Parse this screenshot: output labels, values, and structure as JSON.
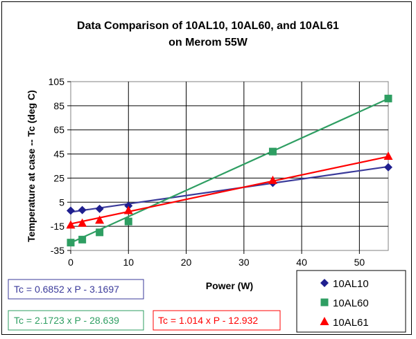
{
  "chart_data": {
    "type": "scatter",
    "title": [
      "Data Comparison of 10AL10, 10AL60, and 10AL61",
      "on Merom 55W"
    ],
    "xlabel": "Power (W)",
    "ylabel": "Temperature at case -- Tc (deg C)",
    "xlim": [
      0,
      55
    ],
    "ylim": [
      -35,
      105
    ],
    "xticks": [
      0,
      10,
      20,
      30,
      40,
      50
    ],
    "yticks": [
      105,
      85,
      65,
      45,
      25,
      5,
      -15,
      -35
    ],
    "grid": true,
    "legend_position": "bottom-right",
    "series": [
      {
        "name": "10AL10",
        "marker": "diamond",
        "color": "#1f1f8f",
        "x": [
          0,
          2,
          5,
          10,
          35,
          55
        ],
        "y": [
          -2,
          -1.5,
          -0.5,
          2,
          21,
          34
        ],
        "trendline": {
          "slope": 0.6852,
          "intercept": -3.1697,
          "equation": "Tc = 0.6852 x P - 3.1697",
          "color": "#3a3a9a"
        }
      },
      {
        "name": "10AL60",
        "marker": "square",
        "color": "#2e9e62",
        "x": [
          0,
          2,
          5,
          10,
          35,
          55
        ],
        "y": [
          -28.5,
          -26,
          -20,
          -11,
          47,
          91
        ],
        "trendline": {
          "slope": 2.1723,
          "intercept": -28.639,
          "equation": "Tc = 2.1723 x P - 28.639",
          "color": "#2e9e62"
        }
      },
      {
        "name": "10AL61",
        "marker": "triangle",
        "color": "#ff0000",
        "x": [
          0,
          2,
          5,
          10,
          35,
          55
        ],
        "y": [
          -14,
          -12.5,
          -10,
          -2,
          23,
          43
        ],
        "trendline": {
          "slope": 1.014,
          "intercept": -12.932,
          "equation": "Tc = 1.014 x P - 12.932",
          "color": "#ff0000"
        }
      }
    ]
  }
}
